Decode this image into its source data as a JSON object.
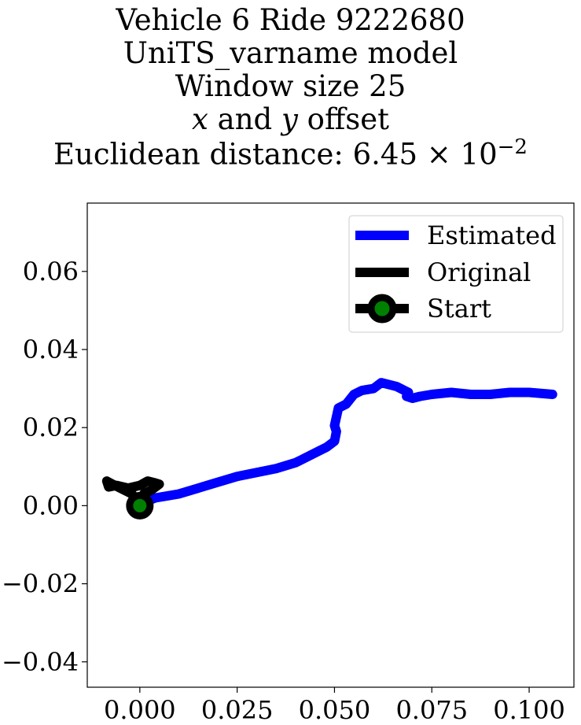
{
  "chart_data": {
    "type": "line",
    "title_lines": [
      "Vehicle 6 Ride 9222680",
      "UniTS_varname model",
      "Window size 25",
      "x and y offset",
      "Euclidean distance: 6.45 × 10^{-2}"
    ],
    "title_parts": {
      "line4_x": "x",
      "line4_mid": " and ",
      "line4_y": "y",
      "line4_rest": " offset",
      "line5_prefix": "Euclidean distance: 6.45 × 10",
      "line5_exp": "−2"
    },
    "xlim": [
      -0.0135,
      0.1115
    ],
    "ylim": [
      -0.0465,
      0.0775
    ],
    "x_ticks": [
      0.0,
      0.025,
      0.05,
      0.075,
      0.1
    ],
    "x_tick_labels": [
      "0.000",
      "0.025",
      "0.050",
      "0.075",
      "0.100"
    ],
    "y_ticks": [
      -0.04,
      -0.02,
      0.0,
      0.02,
      0.04,
      0.06
    ],
    "y_tick_labels": [
      "−0.04",
      "−0.02",
      "0.00",
      "0.02",
      "0.04",
      "0.06"
    ],
    "legend_position": "top-right",
    "series": [
      {
        "name": "Estimated",
        "color": "#0000ff",
        "x": [
          0.0,
          0.004,
          0.01,
          0.015,
          0.02,
          0.025,
          0.03,
          0.035,
          0.04,
          0.042,
          0.045,
          0.048,
          0.05,
          0.0505,
          0.05,
          0.051,
          0.053,
          0.055,
          0.057,
          0.06,
          0.062,
          0.064,
          0.066,
          0.068,
          0.069,
          0.0685,
          0.07,
          0.072,
          0.075,
          0.08,
          0.085,
          0.09,
          0.095,
          0.1,
          0.106
        ],
        "y": [
          0.0005,
          0.002,
          0.003,
          0.0045,
          0.006,
          0.0075,
          0.0085,
          0.0095,
          0.011,
          0.012,
          0.0135,
          0.015,
          0.0165,
          0.019,
          0.0205,
          0.025,
          0.026,
          0.0285,
          0.0295,
          0.03,
          0.0315,
          0.031,
          0.0305,
          0.0295,
          0.029,
          0.028,
          0.0275,
          0.028,
          0.0285,
          0.029,
          0.0285,
          0.0285,
          0.029,
          0.029,
          0.0285
        ]
      },
      {
        "name": "Original",
        "color": "#000000",
        "x": [
          0.0,
          -0.002,
          -0.005,
          -0.007,
          -0.0085,
          -0.008,
          -0.006,
          -0.003,
          0.0,
          0.002,
          0.004,
          0.005,
          0.003,
          0.001,
          0.0
        ],
        "y": [
          0.0,
          0.003,
          0.0045,
          0.0055,
          0.0063,
          0.0048,
          0.0052,
          0.0045,
          0.0052,
          0.0063,
          0.0058,
          0.0055,
          0.004,
          0.003,
          0.0
        ]
      }
    ],
    "start": {
      "name": "Start",
      "x": 0.0,
      "y": 0.0,
      "edge_color": "#000000",
      "face_color": "#008000"
    }
  }
}
